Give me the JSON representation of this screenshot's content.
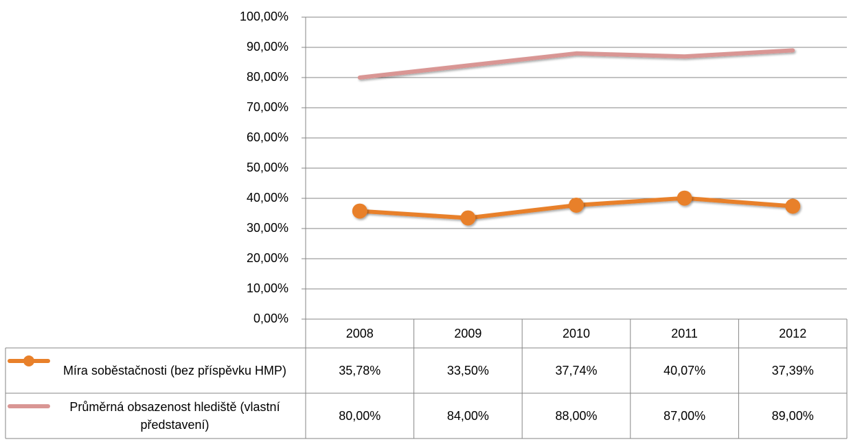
{
  "chart_data": {
    "type": "line",
    "categories": [
      "2008",
      "2009",
      "2010",
      "2011",
      "2012"
    ],
    "series": [
      {
        "name": "Míra soběstačnosti (bez příspěvku HMP)",
        "color": "#e8802a",
        "markers": true,
        "values": [
          35.78,
          33.5,
          37.74,
          40.07,
          37.39
        ],
        "value_labels": [
          "35,78%",
          "33,50%",
          "37,74%",
          "40,07%",
          "37,39%"
        ]
      },
      {
        "name": "Průměrná obsazenost hlediště (vlastní představení)",
        "color": "#d99694",
        "markers": false,
        "values": [
          80.0,
          84.0,
          88.0,
          87.0,
          89.0
        ],
        "value_labels": [
          "80,00%",
          "84,00%",
          "88,00%",
          "87,00%",
          "89,00%"
        ]
      }
    ],
    "ylim": [
      0,
      100
    ],
    "yticks": [
      {
        "value": 0,
        "label": "0,00%"
      },
      {
        "value": 10,
        "label": "10,00%"
      },
      {
        "value": 20,
        "label": "20,00%"
      },
      {
        "value": 30,
        "label": "30,00%"
      },
      {
        "value": 40,
        "label": "40,00%"
      },
      {
        "value": 50,
        "label": "50,00%"
      },
      {
        "value": 60,
        "label": "60,00%"
      },
      {
        "value": 70,
        "label": "70,00%"
      },
      {
        "value": 80,
        "label": "80,00%"
      },
      {
        "value": 90,
        "label": "90,00%"
      },
      {
        "value": 100,
        "label": "100,00%"
      }
    ],
    "grid": true,
    "data_table": true
  }
}
